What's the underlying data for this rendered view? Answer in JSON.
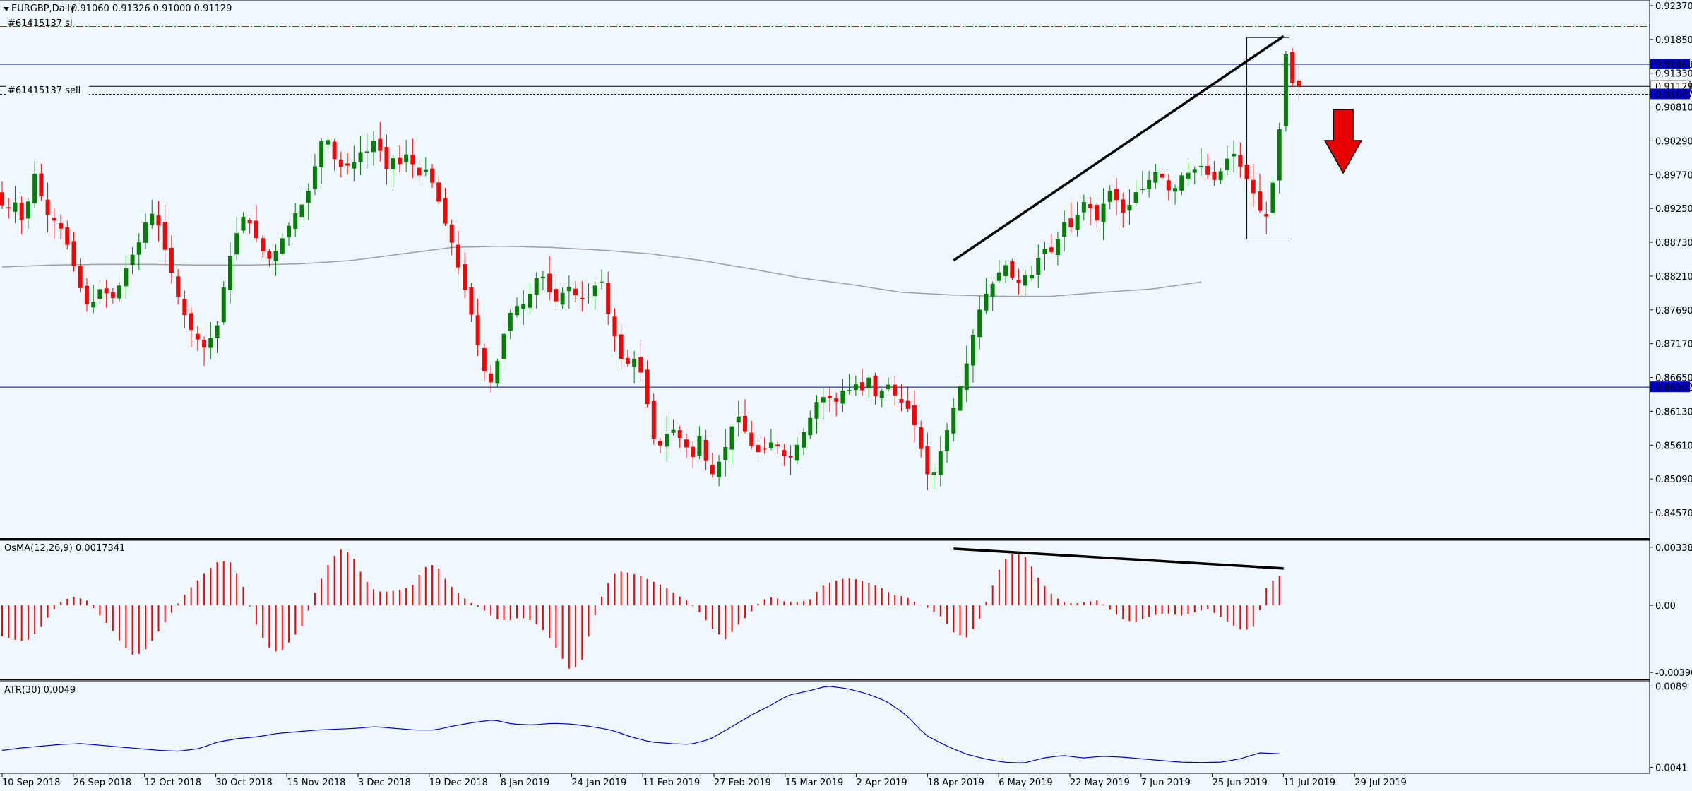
{
  "header": {
    "symbol_info": "EURGBP,Daily",
    "ohlc": "0.91060 0.91326 0.91000 0.91129",
    "order_sl": "#61415137 sl",
    "order_sell": "#61415137 sell"
  },
  "colors": {
    "background": "#f0f8ff",
    "bull": "#008000",
    "bear": "#ff0000",
    "grid_line": "#000080",
    "ma_line": "#a0a0a0",
    "atr_line": "#0000cc",
    "sl_line": "#ff0000",
    "label_bg": "#0000cc"
  },
  "chart_data": [
    {
      "type": "candlestick",
      "title": "EURGBP,Daily",
      "ylim": [
        0.8432,
        0.9237
      ],
      "y_ticks": [
        "0.92370",
        "0.91850",
        "0.91330",
        "0.90810",
        "0.90290",
        "0.89770",
        "0.89250",
        "0.88730",
        "0.88210",
        "0.87690",
        "0.87170",
        "0.86650",
        "0.86130",
        "0.85610",
        "0.85090",
        "0.84570"
      ],
      "x_ticks": [
        "10 Sep 2018",
        "26 Sep 2018",
        "12 Oct 2018",
        "30 Oct 2018",
        "15 Nov 2018",
        "3 Dec 2018",
        "19 Dec 2018",
        "8 Jan 2019",
        "24 Jan 2019",
        "11 Feb 2019",
        "27 Feb 2019",
        "15 Mar 2019",
        "2 Apr 2019",
        "18 Apr 2019",
        "6 May 2019",
        "22 May 2019",
        "7 Jun 2019",
        "25 Jun 2019",
        "11 Jul 2019",
        "29 Jul 2019"
      ],
      "close_path": [
        0.893,
        0.8925,
        0.8935,
        0.8905,
        0.894,
        0.8985,
        0.8935,
        0.891,
        0.8905,
        0.889,
        0.886,
        0.8825,
        0.879,
        0.877,
        0.879,
        0.881,
        0.878,
        0.8795,
        0.882,
        0.885,
        0.886,
        0.8895,
        0.892,
        0.891,
        0.887,
        0.8835,
        0.8795,
        0.8765,
        0.874,
        0.8725,
        0.871,
        0.8725,
        0.8745,
        0.8805,
        0.8855,
        0.889,
        0.8915,
        0.89,
        0.8875,
        0.8855,
        0.8845,
        0.8865,
        0.8885,
        0.8905,
        0.8925,
        0.8935,
        0.8965,
        0.901,
        0.9045,
        0.9015,
        0.8985,
        0.8995,
        0.8985,
        0.9015,
        0.9005,
        0.903,
        0.9025,
        0.898,
        0.9005,
        0.899,
        0.901,
        0.8995,
        0.8975,
        0.8985,
        0.8965,
        0.8935,
        0.89,
        0.887,
        0.883,
        0.8795,
        0.8755,
        0.8705,
        0.8665,
        0.8655,
        0.8705,
        0.8745,
        0.8775,
        0.8775,
        0.878,
        0.8805,
        0.883,
        0.881,
        0.878,
        0.8785,
        0.881,
        0.8795,
        0.8785,
        0.8785,
        0.88,
        0.8825,
        0.877,
        0.8735,
        0.8695,
        0.8685,
        0.8695,
        0.8675,
        0.8625,
        0.857,
        0.856,
        0.858,
        0.8585,
        0.857,
        0.8555,
        0.854,
        0.8585,
        0.852,
        0.8515,
        0.8545,
        0.8565,
        0.8605,
        0.8605,
        0.8565,
        0.8555,
        0.8545,
        0.8565,
        0.8565,
        0.855,
        0.8535,
        0.8555,
        0.8575,
        0.8595,
        0.8625,
        0.8635,
        0.8635,
        0.8625,
        0.8645,
        0.8645,
        0.8655,
        0.8645,
        0.8665,
        0.8635,
        0.8645,
        0.8655,
        0.8635,
        0.8625,
        0.8615,
        0.8585,
        0.8545,
        0.8505,
        0.8525,
        0.8565,
        0.8595,
        0.8635,
        0.8665,
        0.8705,
        0.8755,
        0.8785,
        0.8805,
        0.8815,
        0.8845,
        0.8825,
        0.8805,
        0.8825,
        0.8815,
        0.8845,
        0.8865,
        0.8855,
        0.8875,
        0.8905,
        0.8895,
        0.8915,
        0.8935,
        0.8925,
        0.8905,
        0.8935,
        0.8955,
        0.8935,
        0.8915,
        0.8935,
        0.8955,
        0.8955,
        0.8975,
        0.8985,
        0.8965,
        0.8945,
        0.8965,
        0.8985,
        0.8975,
        0.8995,
        0.8985,
        0.8965,
        0.8975,
        0.8995,
        0.9015,
        0.8995,
        0.8975,
        0.8955,
        0.8925,
        0.8905,
        0.8955,
        0.9035,
        0.9165,
        0.9118,
        0.9113
      ],
      "ma_path": [
        0.8835,
        0.8838,
        0.8839,
        0.8839,
        0.8838,
        0.8838,
        0.884,
        0.8845,
        0.8855,
        0.8865,
        0.8867,
        0.8865,
        0.8861,
        0.8855,
        0.8845,
        0.8832,
        0.8818,
        0.8808,
        0.8796,
        0.8792,
        0.879,
        0.879,
        0.8796,
        0.8801,
        0.8812
      ],
      "horizontal_levels": [
        {
          "value": 0.91468,
          "label": "0.91468"
        },
        {
          "value": 0.91129,
          "label": "0.91129"
        },
        {
          "value": 0.91007,
          "label": "0.91007"
        },
        {
          "value": 0.86502,
          "label": "0.86502"
        }
      ],
      "sl_level": 0.9205,
      "trendline": {
        "x0": 146,
        "y0": 0.8845,
        "x1": 196,
        "y1": 0.919
      },
      "highlight_box": {
        "x0": 191,
        "x1": 197.5,
        "y0": 0.8878,
        "y1": 0.9188
      }
    },
    {
      "type": "bar",
      "title": "OsMA(12,26,9) 0.0017341",
      "ylim": [
        -0.00415,
        0.0035
      ],
      "y_ticks": [
        "0.0033816",
        "0.00",
        "-0.0039089"
      ],
      "path": [
        -0.0018,
        -0.002,
        -0.0021,
        -0.0015,
        -0.0005,
        0.0003,
        0.0005,
        0.0003,
        -0.0005,
        -0.0013,
        -0.0023,
        -0.003,
        -0.0025,
        -0.0015,
        -0.0005,
        0.0005,
        0.0013,
        0.002,
        0.0026,
        0.0025,
        0.0011,
        -0.001,
        -0.0024,
        -0.0028,
        -0.002,
        -0.0011,
        0.0008,
        0.0023,
        0.0033,
        0.003,
        0.0016,
        0.0008,
        0.0008,
        0.0009,
        0.0011,
        0.0022,
        0.0024,
        0.0013,
        0.0006,
        0.0001,
        -0.0003,
        -0.0008,
        -0.0009,
        -0.0007,
        -0.0009,
        -0.0015,
        -0.0025,
        -0.0037,
        -0.0035,
        -0.001,
        0.001,
        0.002,
        0.0019,
        0.0017,
        0.0014,
        0.0011,
        0.0006,
        0.0002,
        -0.0005,
        -0.0014,
        -0.002,
        -0.0012,
        -0.0005,
        0.0003,
        0.0005,
        0.0002,
        0.0002,
        0.0003,
        0.0011,
        0.0014,
        0.0016,
        0.0015,
        0.0013,
        0.001,
        0.0006,
        0.0005,
        0.0001,
        -0.0002,
        -0.0007,
        -0.0016,
        -0.0019,
        -0.001,
        0.0008,
        0.0025,
        0.0031,
        0.0028,
        0.0016,
        0.0007,
        0.0002,
        0.0001,
        0.0002,
        0.0003,
        -0.0003,
        -0.0008,
        -0.001,
        -0.0007,
        -0.0005,
        -0.0005,
        -0.0006,
        -0.0004,
        -0.0002,
        -0.0006,
        -0.0011,
        -0.0015,
        -0.0012,
        0.0012,
        0.0017
      ]
    },
    {
      "type": "line",
      "title": "ATR(30) 0.0049",
      "ylim": [
        0.00395,
        0.009
      ],
      "y_ticks": [
        "0.0089",
        "0.0041"
      ],
      "path": [
        0.0051,
        0.00525,
        0.00535,
        0.00545,
        0.0055,
        0.0054,
        0.0053,
        0.0052,
        0.0051,
        0.00505,
        0.0052,
        0.0056,
        0.0058,
        0.0059,
        0.0061,
        0.0062,
        0.0063,
        0.00635,
        0.0064,
        0.0065,
        0.0064,
        0.0063,
        0.0063,
        0.00655,
        0.00675,
        0.0069,
        0.00665,
        0.0066,
        0.0067,
        0.00665,
        0.0065,
        0.0063,
        0.0059,
        0.0056,
        0.0055,
        0.00545,
        0.00575,
        0.0064,
        0.0071,
        0.0077,
        0.00835,
        0.0086,
        0.0089,
        0.00875,
        0.00845,
        0.008,
        0.0072,
        0.006,
        0.0054,
        0.0049,
        0.0046,
        0.0044,
        0.00435,
        0.00465,
        0.0048,
        0.00465,
        0.00475,
        0.0047,
        0.0046,
        0.0045,
        0.0044,
        0.00438,
        0.0044,
        0.0046,
        0.00495,
        0.0049
      ]
    }
  ]
}
